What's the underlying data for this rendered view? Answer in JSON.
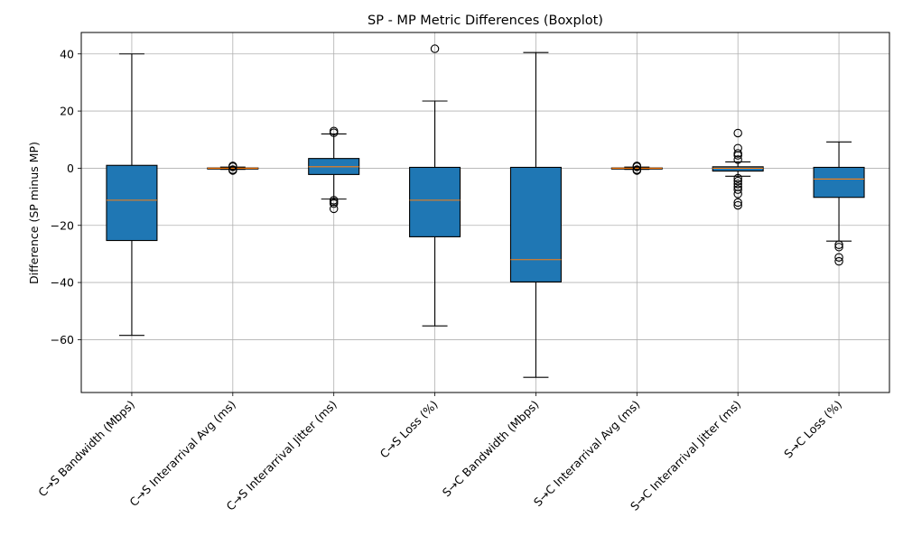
{
  "chart_data": {
    "type": "boxplot",
    "title": "SP - MP Metric Differences (Boxplot)",
    "xlabel": "",
    "ylabel": "Difference (SP minus MP)",
    "ylim": [
      -78.5,
      47.5
    ],
    "yticks": [
      40,
      20,
      0,
      -20,
      -40,
      -60
    ],
    "ytick_labels": [
      "40",
      "20",
      "0",
      "−20",
      "−40",
      "−60"
    ],
    "grid": true,
    "colors": {
      "box_fill": "#1f77b4",
      "median": "#ff7f0e",
      "grid": "#b0b0b0",
      "outline": "#000000"
    },
    "categories": [
      "C→S Bandwidth (Mbps)",
      "C→S Interarrival Avg (ms)",
      "C→S Interarrival Jitter (ms)",
      "C→S Loss (%)",
      "S→C Bandwidth (Mbps)",
      "S→C Interarrival Avg (ms)",
      "S→C Interarrival Jitter (ms)",
      "S→C Loss (%)"
    ],
    "boxes": [
      {
        "whisker_low": -58.5,
        "q1": -25.3,
        "median": -11.2,
        "q3": 1.0,
        "whisker_high": 40.0,
        "outliers": []
      },
      {
        "whisker_low": -0.4,
        "q1": -0.1,
        "median": 0.0,
        "q3": 0.1,
        "whisker_high": 0.4,
        "outliers": [
          0.8,
          0.5,
          -0.5,
          -0.8
        ]
      },
      {
        "whisker_low": -10.8,
        "q1": -2.2,
        "median": 0.5,
        "q3": 3.4,
        "whisker_high": 12.0,
        "outliers": [
          12.4,
          13.0,
          -11.2,
          -11.8,
          -12.4,
          -14.2
        ]
      },
      {
        "whisker_low": -55.2,
        "q1": -24.0,
        "median": -11.2,
        "q3": 0.3,
        "whisker_high": 23.5,
        "outliers": [
          41.8
        ]
      },
      {
        "whisker_low": -73.2,
        "q1": -39.8,
        "median": -32.0,
        "q3": 0.3,
        "whisker_high": 40.5,
        "outliers": []
      },
      {
        "whisker_low": -0.4,
        "q1": -0.1,
        "median": 0.0,
        "q3": 0.1,
        "whisker_high": 0.4,
        "outliers": [
          0.8,
          0.5,
          -0.5,
          -0.8
        ]
      },
      {
        "whisker_low": -2.8,
        "q1": -1.0,
        "median": 0.0,
        "q3": 0.5,
        "whisker_high": 2.2,
        "outliers": [
          12.3,
          7.0,
          5.2,
          4.5,
          3.0,
          -3.5,
          -4.5,
          -5.5,
          -6.5,
          -7.5,
          -9.0,
          -12.0,
          -13.0
        ]
      },
      {
        "whisker_low": -25.5,
        "q1": -10.2,
        "median": -3.8,
        "q3": 0.3,
        "whisker_high": 9.2,
        "outliers": [
          -26.8,
          -27.6,
          -31.2,
          -32.6
        ]
      }
    ]
  }
}
